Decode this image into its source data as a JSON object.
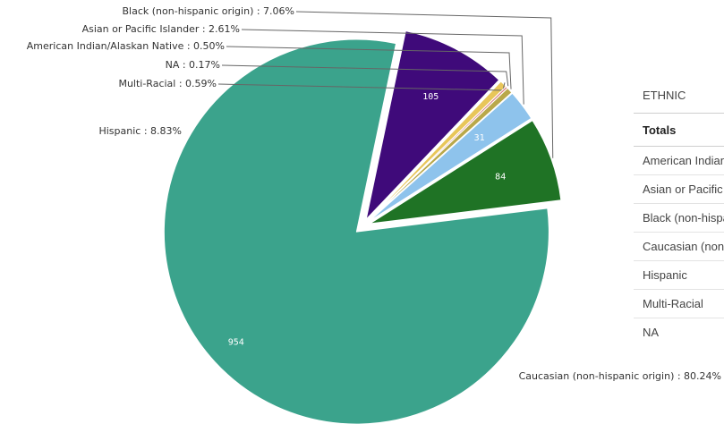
{
  "chart_data": {
    "type": "pie",
    "categories": [
      "Caucasian (non-hispanic origin)",
      "Hispanic",
      "Multi-Racial",
      "NA",
      "American Indian/Alaskan Native",
      "Asian or Pacific Islander",
      "Black (non-hispanic origin)"
    ],
    "values": [
      954,
      105,
      7,
      2,
      6,
      31,
      84
    ],
    "value_labels": [
      "954",
      "105",
      "",
      "",
      "",
      "31",
      "84"
    ],
    "percent_labels": [
      "Caucasian (non-hispanic origin) : 80.24%",
      "Hispanic : 8.83%",
      "Multi-Racial : 0.59%",
      "NA : 0.17%",
      "American Indian/Alaskan Native : 0.50%",
      "Asian or Pacific Islander : 2.61%",
      "Black (non-hispanic origin) : 7.06%"
    ],
    "colors": [
      "#3ba38c",
      "#3f0a7a",
      "#e8c65a",
      "#d97a7a",
      "#b9a84a",
      "#8ec3ec",
      "#1f7325"
    ],
    "exploded": true
  },
  "table": {
    "header": "ETHNIC",
    "totals_label": "Totals",
    "rows": [
      "American Indian/Alaskan Native",
      "Asian or Pacific Islander",
      "Black (non-hispanic origin)",
      "Caucasian (non-hispanic origin)",
      "Hispanic",
      "Multi-Racial",
      "NA"
    ]
  }
}
